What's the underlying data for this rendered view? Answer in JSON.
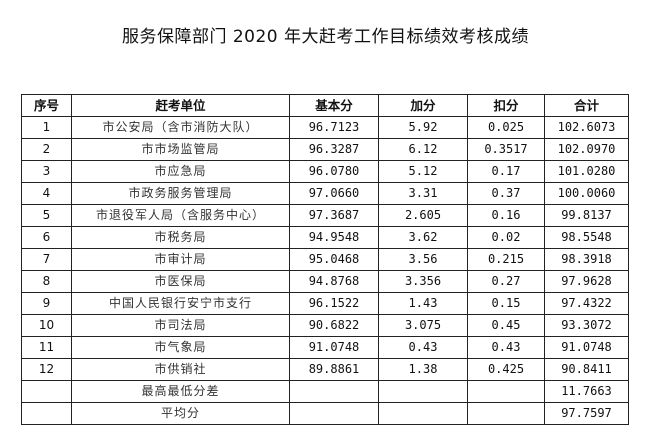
{
  "title": "服务保障部门 2020 年大赶考工作目标绩效考核成绩",
  "headers": [
    "序号",
    "赶考单位",
    "基本分",
    "加分",
    "扣分",
    "合计"
  ],
  "rows": [
    [
      "1",
      "市公安局（含市消防大队）",
      "96.7123",
      "5.92",
      "0.025",
      "102.6073"
    ],
    [
      "2",
      "市市场监管局",
      "96.3287",
      "6.12",
      "0.3517",
      "102.0970"
    ],
    [
      "3",
      "市应急局",
      "96.0780",
      "5.12",
      "0.17",
      "101.0280"
    ],
    [
      "4",
      "市政务服务管理局",
      "97.0660",
      "3.31",
      "0.37",
      "100.0060"
    ],
    [
      "5",
      "市退役军人局（含服务中心）",
      "97.3687",
      "2.605",
      "0.16",
      "99.8137"
    ],
    [
      "6",
      "市税务局",
      "94.9548",
      "3.62",
      "0.02",
      "98.5548"
    ],
    [
      "7",
      "市审计局",
      "95.0468",
      "3.56",
      "0.215",
      "98.3918"
    ],
    [
      "8",
      "市医保局",
      "94.8768",
      "3.356",
      "0.27",
      "97.9628"
    ],
    [
      "9",
      "中国人民银行安宁市支行",
      "96.1522",
      "1.43",
      "0.15",
      "97.4322"
    ],
    [
      "10",
      "市司法局",
      "90.6822",
      "3.075",
      "0.45",
      "93.3072"
    ],
    [
      "11",
      "市气象局",
      "91.0748",
      "0.43",
      "0.43",
      "91.0748"
    ],
    [
      "12",
      "市供销社",
      "89.8861",
      "1.38",
      "0.425",
      "90.8411"
    ]
  ],
  "summary": {
    "max_min_diff_label": "最高最低分差",
    "max_min_diff_value": "11.7663",
    "average_label": "平均分",
    "average_value": "97.7597"
  }
}
